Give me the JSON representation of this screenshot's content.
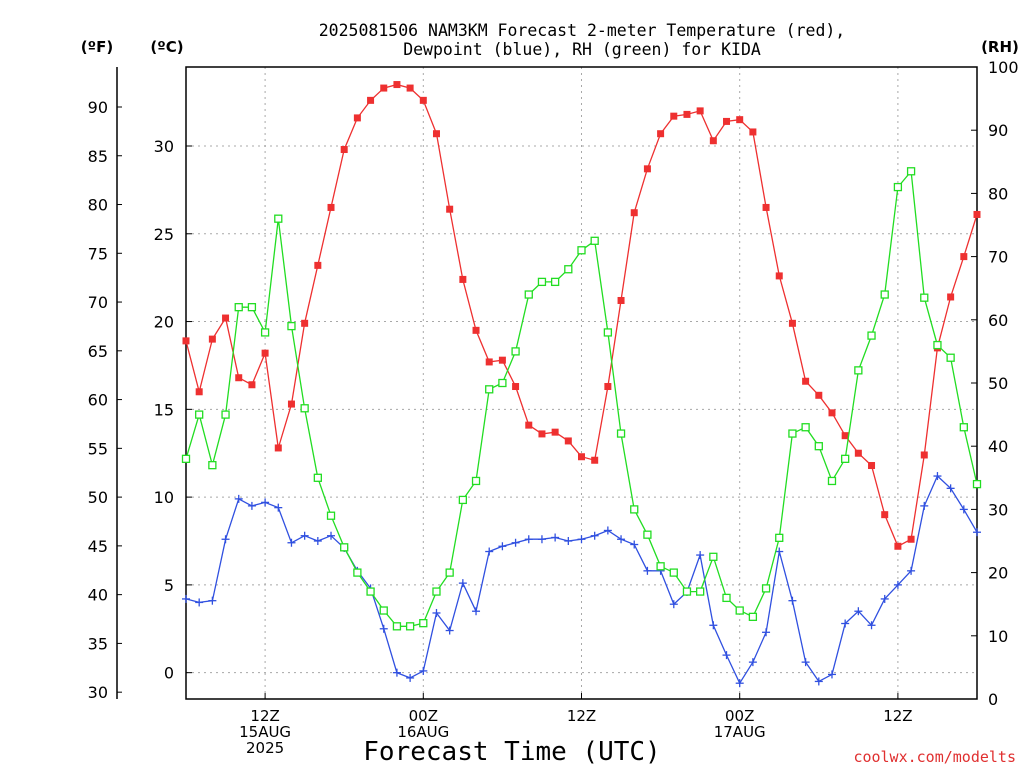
{
  "page": {
    "title_line1": "2025081506 NAM3KM Forecast 2-meter Temperature (red),",
    "title_line2": "Dewpoint (blue), RH (green) for KIDA",
    "watermark": "coolwx.com/modelts"
  },
  "chart_data": {
    "type": "line",
    "xlabel": "Forecast Time (UTC)",
    "x_hours": [
      0,
      1,
      2,
      3,
      4,
      5,
      6,
      7,
      8,
      9,
      10,
      11,
      12,
      13,
      14,
      15,
      16,
      17,
      18,
      19,
      20,
      21,
      22,
      23,
      24,
      25,
      26,
      27,
      28,
      29,
      30,
      31,
      32,
      33,
      34,
      35,
      36,
      37,
      38,
      39,
      40,
      41,
      42,
      43,
      44,
      45,
      46,
      47,
      48,
      49,
      50,
      51,
      52,
      53,
      54,
      55,
      56,
      57,
      58,
      59,
      60
    ],
    "x_start": "2025-08-15 06Z",
    "xlim_hours": [
      0,
      60
    ],
    "x_ticks": [
      {
        "hour": 6,
        "labels": [
          "12Z",
          "15AUG",
          "2025"
        ]
      },
      {
        "hour": 18,
        "labels": [
          "00Z",
          "16AUG"
        ]
      },
      {
        "hour": 30,
        "labels": [
          "12Z"
        ]
      },
      {
        "hour": 42,
        "labels": [
          "00Z",
          "17AUG"
        ]
      },
      {
        "hour": 54,
        "labels": [
          "12Z"
        ]
      }
    ],
    "left_axis_c": {
      "label": "(ºC)",
      "ticks": [
        0,
        5,
        10,
        15,
        20,
        25,
        30
      ],
      "ylim": [
        -1.5,
        34.5
      ]
    },
    "left_axis_f": {
      "label": "(ºF)",
      "ticks": [
        30,
        35,
        40,
        45,
        50,
        55,
        60,
        65,
        70,
        75,
        80,
        85,
        90
      ]
    },
    "right_axis_rh": {
      "label": "(RH)",
      "ticks": [
        0,
        10,
        20,
        30,
        40,
        50,
        60,
        70,
        80,
        90,
        100
      ],
      "ylim": [
        0,
        100
      ]
    },
    "grid": true,
    "series": [
      {
        "name": "Temperature",
        "color": "#ee3030",
        "marker": "filled-square",
        "units": "C",
        "values": [
          18.9,
          16.0,
          19.0,
          20.2,
          16.8,
          16.4,
          18.2,
          12.8,
          15.3,
          19.9,
          23.2,
          26.5,
          29.8,
          31.6,
          32.6,
          33.3,
          33.5,
          33.3,
          32.6,
          30.7,
          26.4,
          22.4,
          19.5,
          17.7,
          17.8,
          16.3,
          14.1,
          13.6,
          13.7,
          13.2,
          12.3,
          12.1,
          16.3,
          21.2,
          26.2,
          28.7,
          30.7,
          31.7,
          31.8,
          32.0,
          30.3,
          31.4,
          31.5,
          30.8,
          26.5,
          22.6,
          19.9,
          16.6,
          15.8,
          14.8,
          13.5,
          12.5,
          11.8,
          9.0,
          7.2,
          7.6,
          12.4,
          18.5,
          21.4,
          23.7,
          26.1
        ]
      },
      {
        "name": "Dewpoint",
        "color": "#3050e0",
        "marker": "plus",
        "units": "C",
        "values": [
          4.2,
          4.0,
          4.1,
          7.6,
          9.9,
          9.5,
          9.7,
          9.4,
          7.4,
          7.8,
          7.5,
          7.8,
          7.1,
          5.8,
          4.8,
          2.5,
          0.0,
          -0.3,
          0.1,
          3.4,
          2.4,
          5.1,
          3.5,
          6.9,
          7.2,
          7.4,
          7.6,
          7.6,
          7.7,
          7.5,
          7.6,
          7.8,
          8.1,
          7.6,
          7.3,
          5.8,
          5.8,
          3.9,
          4.6,
          6.7,
          2.7,
          1.0,
          -0.6,
          0.6,
          2.3,
          6.9,
          4.1,
          0.6,
          -0.5,
          -0.1,
          2.8,
          3.5,
          2.7,
          4.2,
          5.0,
          5.8,
          9.5,
          11.2,
          10.5,
          9.3,
          8.0
        ]
      },
      {
        "name": "RH",
        "color": "#22dd22",
        "marker": "open-square",
        "units": "%",
        "values": [
          38,
          45,
          37,
          45,
          62,
          62,
          58,
          76,
          59,
          46,
          35,
          29,
          24,
          20,
          17,
          14,
          11.5,
          11.5,
          12,
          17,
          20,
          31.5,
          34.5,
          49,
          50,
          55,
          64,
          66,
          66,
          68,
          71,
          72.5,
          58,
          42,
          30,
          26,
          21,
          20,
          17,
          17,
          22.5,
          16,
          14,
          13,
          17.5,
          25.5,
          42,
          43,
          40,
          34.5,
          38,
          52,
          57.5,
          64,
          81,
          83.5,
          63.5,
          56,
          54,
          43,
          34
        ]
      }
    ]
  }
}
